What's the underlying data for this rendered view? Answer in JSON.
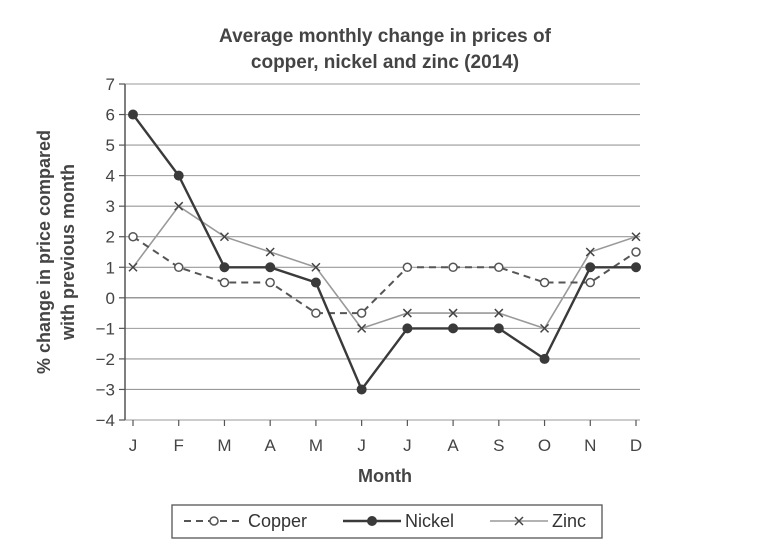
{
  "chart_data": {
    "type": "line",
    "title_line1": "Average monthly change in prices of",
    "title_line2": "copper, nickel and zinc (2014)",
    "xlabel": "Month",
    "ylabel_line1": "% change in price compared",
    "ylabel_line2": "with previous month",
    "categories": [
      "J",
      "F",
      "M",
      "A",
      "M",
      "J",
      "J",
      "A",
      "S",
      "O",
      "N",
      "D"
    ],
    "ylim": [
      -4,
      7
    ],
    "yticks": [
      "7",
      "6",
      "5",
      "4",
      "3",
      "2",
      "1",
      "0",
      "−1",
      "−2",
      "−3",
      "−4"
    ],
    "grid": "horizontal",
    "legend_position": "bottom",
    "series": [
      {
        "name": "Copper",
        "style": "dashed",
        "marker": "circle",
        "color": "#555555",
        "values": [
          2,
          1,
          0.5,
          0.5,
          -0.5,
          -0.5,
          1,
          1,
          1,
          0.5,
          0.5,
          1.5
        ]
      },
      {
        "name": "Nickel",
        "style": "solid",
        "marker": "filled-circle",
        "color": "#3a3a3a",
        "values": [
          6,
          4,
          1,
          1,
          0.5,
          -3,
          -1,
          -1,
          -1,
          -2,
          1,
          1
        ]
      },
      {
        "name": "Zinc",
        "style": "solid-light",
        "marker": "cross",
        "color": "#999999",
        "values": [
          1,
          3,
          2,
          1.5,
          1,
          -1,
          -0.5,
          -0.5,
          -0.5,
          -1,
          1.5,
          2
        ]
      }
    ]
  }
}
